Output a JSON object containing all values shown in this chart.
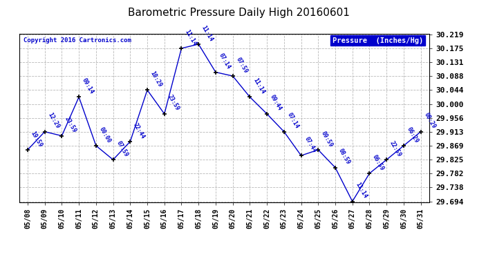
{
  "title": "Barometric Pressure Daily High 20160601",
  "copyright": "Copyright 2016 Cartronics.com",
  "legend_label": "Pressure  (Inches/Hg)",
  "dates": [
    "05/08",
    "05/09",
    "05/10",
    "05/11",
    "05/12",
    "05/13",
    "05/14",
    "05/15",
    "05/16",
    "05/17",
    "05/18",
    "05/19",
    "05/20",
    "05/21",
    "05/22",
    "05/23",
    "05/24",
    "05/25",
    "05/26",
    "05/27",
    "05/28",
    "05/29",
    "05/30",
    "05/31"
  ],
  "values": [
    29.856,
    29.913,
    29.9,
    30.022,
    29.869,
    29.825,
    29.882,
    30.044,
    29.969,
    30.175,
    30.188,
    30.1,
    30.088,
    30.022,
    29.969,
    29.913,
    29.838,
    29.856,
    29.8,
    29.694,
    29.782,
    29.825,
    29.869,
    29.913
  ],
  "time_labels": [
    "19:59",
    "12:29",
    "23:59",
    "09:14",
    "00:00",
    "07:59",
    "22:44",
    "10:29",
    "23:59",
    "11:14",
    "11:14",
    "07:14",
    "07:59",
    "11:14",
    "09:44",
    "07:14",
    "07:44",
    "09:59",
    "08:59",
    "11:14",
    "06:59",
    "22:59",
    "06:29",
    "08:29"
  ],
  "line_color": "#0000CC",
  "marker_color": "#000000",
  "background_color": "#ffffff",
  "grid_color": "#b0b0b0",
  "title_color": "#000000",
  "copyright_color": "#0000CC",
  "legend_bg": "#0000CC",
  "legend_text_color": "#ffffff",
  "ylim_min": 29.694,
  "ylim_max": 30.219,
  "yticks": [
    29.694,
    29.738,
    29.782,
    29.825,
    29.869,
    29.913,
    29.956,
    30.0,
    30.044,
    30.088,
    30.131,
    30.175,
    30.219
  ]
}
